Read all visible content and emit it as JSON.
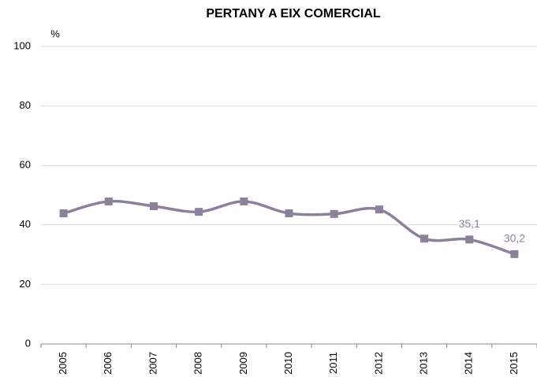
{
  "chart_data": {
    "type": "line",
    "title": "PERTANY A EIX COMERCIAL",
    "y_label": "%",
    "categories": [
      "2005",
      "2006",
      "2007",
      "2008",
      "2009",
      "2010",
      "2011",
      "2012",
      "2013",
      "2014",
      "2015"
    ],
    "values": [
      43.9,
      47.9,
      46.3,
      44.4,
      47.9,
      43.9,
      43.7,
      45.2,
      35.4,
      35.1,
      30.2
    ],
    "value_labels": [
      null,
      null,
      null,
      null,
      null,
      null,
      null,
      null,
      null,
      "35,1",
      "30,2"
    ],
    "color": "#8c809d",
    "ylim": [
      0,
      100
    ],
    "yticks": [
      0,
      20,
      40,
      60,
      80,
      100
    ],
    "grid": true,
    "smooth": true
  }
}
